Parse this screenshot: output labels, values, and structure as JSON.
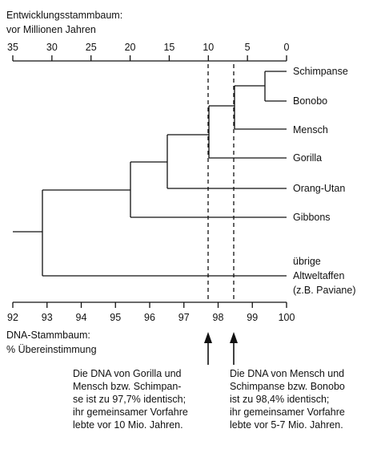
{
  "top_axis": {
    "title_line1": "Entwicklungsstammbaum:",
    "title_line2": "vor Millionen Jahren",
    "ticks": [
      "35",
      "30",
      "25",
      "20",
      "15",
      "10",
      "5",
      "0"
    ]
  },
  "bottom_axis": {
    "title_line1": "DNA-Stammbaum:",
    "title_line2": "% Übereinstimmung",
    "ticks": [
      "92",
      "93",
      "94",
      "95",
      "96",
      "97",
      "98",
      "99",
      "100"
    ]
  },
  "taxa": {
    "schimpanse": "Schimpanse",
    "bonobo": "Bonobo",
    "mensch": "Mensch",
    "gorilla": "Gorilla",
    "orang_utan": "Orang-Utan",
    "gibbons": "Gibbons",
    "altwelt_line1": "übrige",
    "altwelt_line2": "Altweltaffen",
    "altwelt_line3": "(z.B. Paviane)"
  },
  "notes": {
    "left": "Die DNA von Gorilla und\nMensch bzw. Schimpan-\nse ist zu 97,7% identisch;\nihr gemeinsamer Vorfahre\nlebte vor 10 Mio. Jahren.",
    "right": "Die DNA von Mensch und\nSchimpanse bzw. Bonobo\nist zu 98,4% identisch;\nihr gemeinsamer Vorfahre\nlebte vor 5-7 Mio. Jahren."
  },
  "markers": {
    "left_percent": 97.7,
    "right_percent": 98.4
  }
}
